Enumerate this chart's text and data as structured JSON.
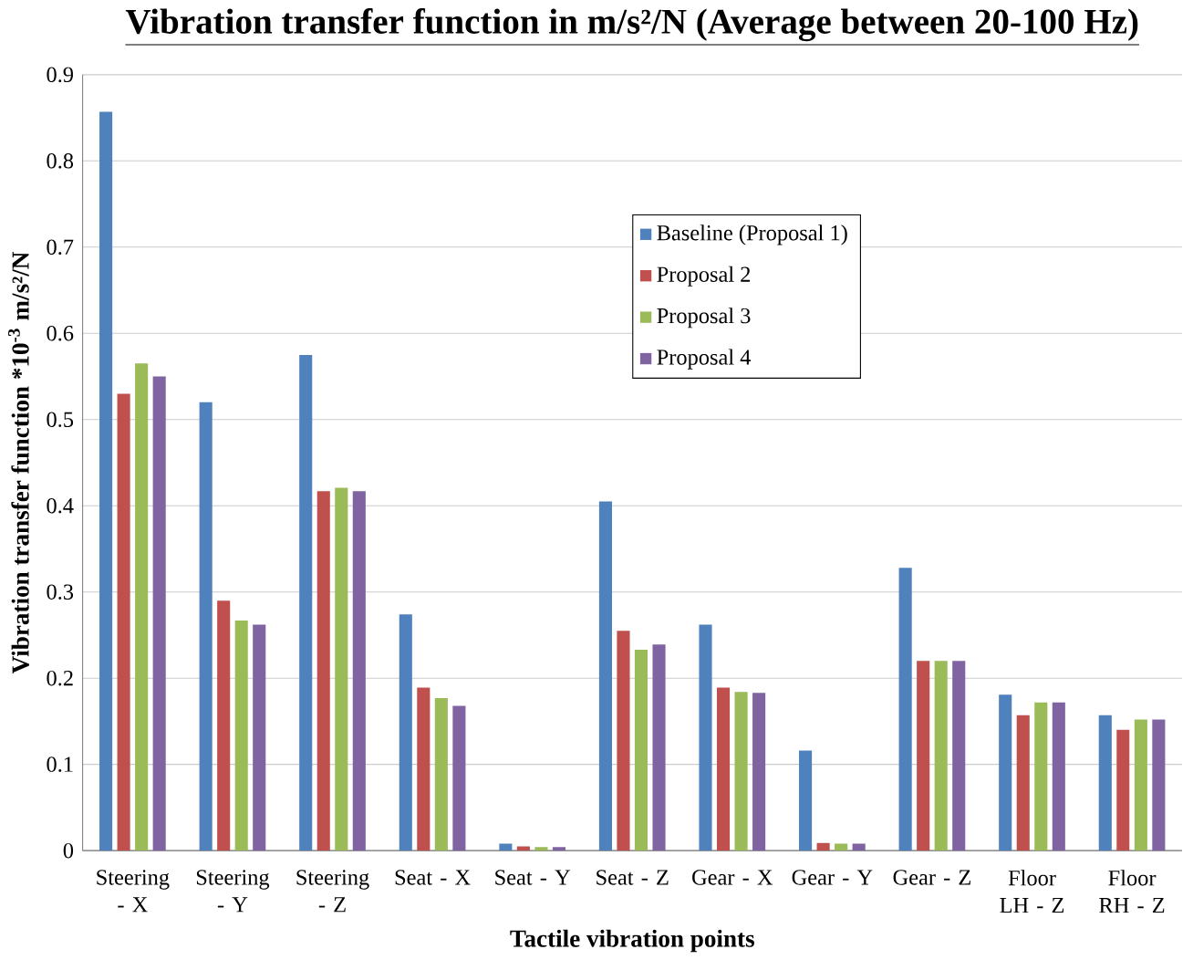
{
  "chart_data": {
    "type": "bar",
    "title": "Vibration transfer function in m/s²/N (Average between 20-100 Hz)",
    "xlabel": "Tactile vibration points",
    "ylabel": "Vibration transfer function *10$^{-3}$  m/s²/N",
    "categories": [
      "Steering - X",
      "Steering - Y",
      "Steering - Z",
      "Seat - X",
      "Seat - Y",
      "Seat - Z",
      "Gear - X",
      "Gear - Y",
      "Gear - Z",
      "Floor LH - Z",
      "Floor RH - Z"
    ],
    "series": [
      {
        "name": "Baseline (Proposal 1)",
        "color": "#4f81bd",
        "values": [
          0.857,
          0.52,
          0.575,
          0.274,
          0.008,
          0.405,
          0.262,
          0.116,
          0.328,
          0.181,
          0.157
        ]
      },
      {
        "name": "Proposal 2",
        "color": "#c0504d",
        "values": [
          0.53,
          0.29,
          0.417,
          0.189,
          0.005,
          0.255,
          0.189,
          0.009,
          0.22,
          0.157,
          0.14
        ]
      },
      {
        "name": "Proposal 3",
        "color": "#9bbb59",
        "values": [
          0.565,
          0.267,
          0.421,
          0.177,
          0.004,
          0.233,
          0.184,
          0.008,
          0.22,
          0.172,
          0.152
        ]
      },
      {
        "name": "Proposal 4",
        "color": "#8064a2",
        "values": [
          0.55,
          0.262,
          0.417,
          0.168,
          0.004,
          0.239,
          0.183,
          0.008,
          0.22,
          0.172,
          0.152
        ]
      }
    ],
    "ylim": [
      0,
      0.9
    ],
    "yticks": [
      0,
      0.1,
      0.2,
      0.3,
      0.4,
      0.5,
      0.6,
      0.7,
      0.8,
      0.9
    ],
    "grid": "y",
    "legend": "top"
  }
}
